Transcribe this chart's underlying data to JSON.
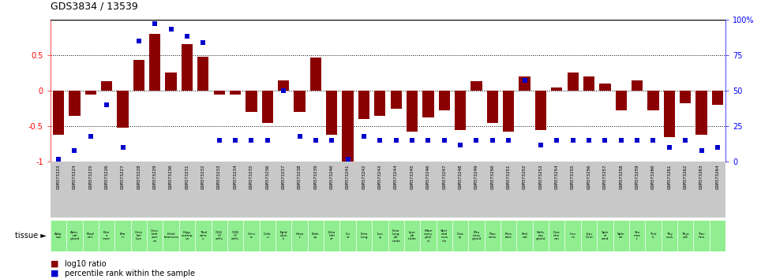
{
  "title": "GDS3834 / 13539",
  "gsm_labels": [
    "GSM373223",
    "GSM373224",
    "GSM373225",
    "GSM373226",
    "GSM373227",
    "GSM373228",
    "GSM373229",
    "GSM373230",
    "GSM373231",
    "GSM373232",
    "GSM373233",
    "GSM373234",
    "GSM373235",
    "GSM373236",
    "GSM373237",
    "GSM373238",
    "GSM373239",
    "GSM373240",
    "GSM373241",
    "GSM373242",
    "GSM373243",
    "GSM373244",
    "GSM373245",
    "GSM373246",
    "GSM373247",
    "GSM373248",
    "GSM373249",
    "GSM373250",
    "GSM373251",
    "GSM373252",
    "GSM373253",
    "GSM373254",
    "GSM373255",
    "GSM373256",
    "GSM373257",
    "GSM373258",
    "GSM373259",
    "GSM373260",
    "GSM373261",
    "GSM373262",
    "GSM373263",
    "GSM373264"
  ],
  "tissue_labels": [
    "Adip\nose",
    "Adre\nnal\ngland",
    "Blad\nder",
    "Bon\ne\nmarr",
    "Bra\nin",
    "Cere\nbel\nlum",
    "Cere\nbral\ncort\nex",
    "Fetal\nbrainoca",
    "Hipp\nocamp\nus",
    "Thal\namu\ns",
    "CD4\n+T\ncells",
    "CD8\n+T\ncells",
    "Cerv\nix",
    "Colo\nn",
    "Epid\ndym\ns",
    "Hear\nt",
    "Kidn\ney",
    "Feta\nlidn\ner",
    "Liv\ner",
    "Feta\nlung",
    "Lun\ng",
    "Feta\nlung\nph\nnode",
    "Lym\nph\nnode",
    "Mam\nmary\nglan\nd",
    "Skel\netal\nmus\ncle",
    "Ova\nry",
    "Pitu\nitary\ngland",
    "Plac\nenta",
    "Pros\ntate",
    "Reti\nnal",
    "Saliv\nary\ngland",
    "Duo\nden\num",
    "Ileu\nm",
    "Jeju\nnum",
    "Spin\nal\ncord",
    "Sple\nen",
    "Sto\nmac\nt",
    "Test\nis",
    "Thy\nmus",
    "Thyr\noid",
    "Trac\nhea"
  ],
  "log10_ratio": [
    -0.62,
    -0.35,
    -0.05,
    0.13,
    -0.52,
    0.43,
    0.8,
    0.25,
    0.65,
    0.48,
    -0.05,
    -0.05,
    -0.3,
    -0.45,
    0.15,
    -0.3,
    0.47,
    -0.62,
    -1.0,
    -0.4,
    -0.35,
    -0.25,
    -0.58,
    -0.38,
    -0.28,
    -0.55,
    0.13,
    -0.45,
    -0.58,
    0.2,
    -0.55,
    0.05,
    0.25,
    0.2,
    0.1,
    -0.28,
    0.15,
    -0.28,
    -0.65,
    -0.18,
    -0.62,
    -0.2
  ],
  "percentile": [
    2,
    8,
    18,
    40,
    10,
    85,
    97,
    93,
    88,
    84,
    15,
    15,
    15,
    15,
    50,
    18,
    15,
    15,
    2,
    18,
    15,
    15,
    15,
    15,
    15,
    12,
    15,
    15,
    15,
    57,
    12,
    15,
    15,
    15,
    15,
    15,
    15,
    15,
    10,
    15,
    8,
    10
  ],
  "bar_color": "#8B0000",
  "dot_color": "#0000CD",
  "bg_color_gray": "#C8C8C8",
  "bg_color_green": "#90EE90",
  "ylim_min": -1,
  "ylim_max": 1,
  "hline_values": [
    -0.5,
    0,
    0.5
  ],
  "legend_red": "log10 ratio",
  "legend_blue": "percentile rank within the sample"
}
